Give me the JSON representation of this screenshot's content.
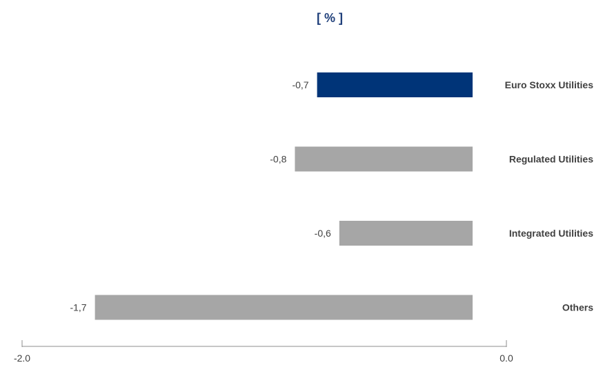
{
  "chart_data": {
    "type": "bar",
    "orientation": "horizontal",
    "title": "[ % ]",
    "categories": [
      "Euro Stoxx Utilities",
      "Regulated Utilities",
      "Integrated Utilities",
      "Others"
    ],
    "values": [
      -0.7,
      -0.8,
      -0.6,
      -1.7
    ],
    "value_labels": [
      "-0,7",
      "-0,8",
      "-0,6",
      "-1,7"
    ],
    "xlim": [
      -2.0,
      0.0
    ],
    "x_ticks": [
      -2.0,
      0.0
    ],
    "x_tick_labels": [
      "-2.0",
      "0.0"
    ],
    "grid": false,
    "legend": "none",
    "colors": {
      "highlight": "#003478",
      "default": "#a6a6a6",
      "title": "#1f3f7a",
      "axis": "#8c8c8c"
    },
    "highlight_index": 0
  }
}
